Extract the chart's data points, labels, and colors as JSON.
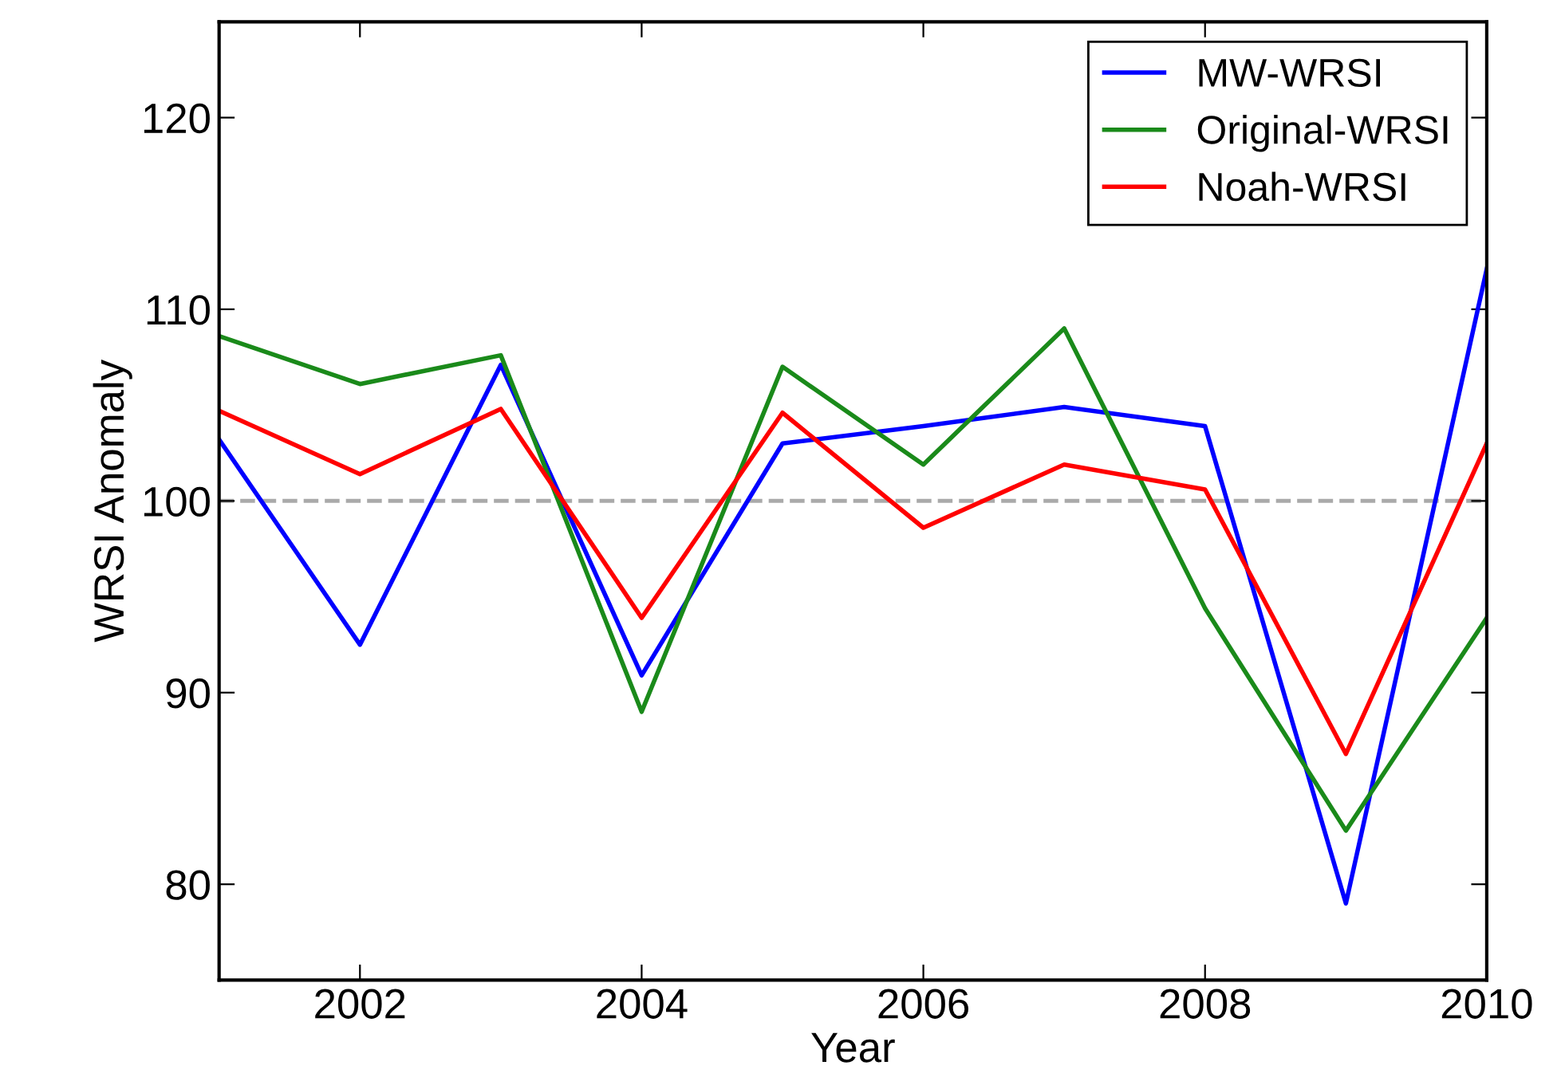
{
  "chart_data": {
    "type": "line",
    "xlabel": "Year",
    "ylabel": "WRSI Anomaly",
    "x": [
      2001,
      2002,
      2003,
      2004,
      2005,
      2006,
      2007,
      2008,
      2009,
      2010
    ],
    "series": [
      {
        "name": "MW-WRSI",
        "color": "#0000ff",
        "values": [
          103.2,
          92.5,
          107.1,
          90.9,
          103.0,
          103.9,
          104.9,
          103.9,
          79.0,
          112.1
        ]
      },
      {
        "name": "Original-WRSI",
        "color": "#1a8a1a",
        "values": [
          108.6,
          106.1,
          107.6,
          89.0,
          107.0,
          101.9,
          109.0,
          94.4,
          82.8,
          93.9
        ]
      },
      {
        "name": "Noah-WRSI",
        "color": "#ff0000",
        "values": [
          104.7,
          101.4,
          104.8,
          93.9,
          104.6,
          98.6,
          101.9,
          100.6,
          86.8,
          103.0
        ]
      }
    ],
    "xlim": [
      2001,
      2010
    ],
    "xticks": [
      2002,
      2004,
      2006,
      2008,
      2010
    ],
    "ylim": [
      75,
      125
    ],
    "yticks": [
      80,
      90,
      100,
      110,
      120
    ],
    "ref_lines": [
      {
        "axis": "y",
        "value": 100,
        "color": "#aaaaaa",
        "line_style": "dashed"
      }
    ],
    "legend": "top right",
    "grid": false,
    "marker": "none",
    "line_style": "solid"
  }
}
